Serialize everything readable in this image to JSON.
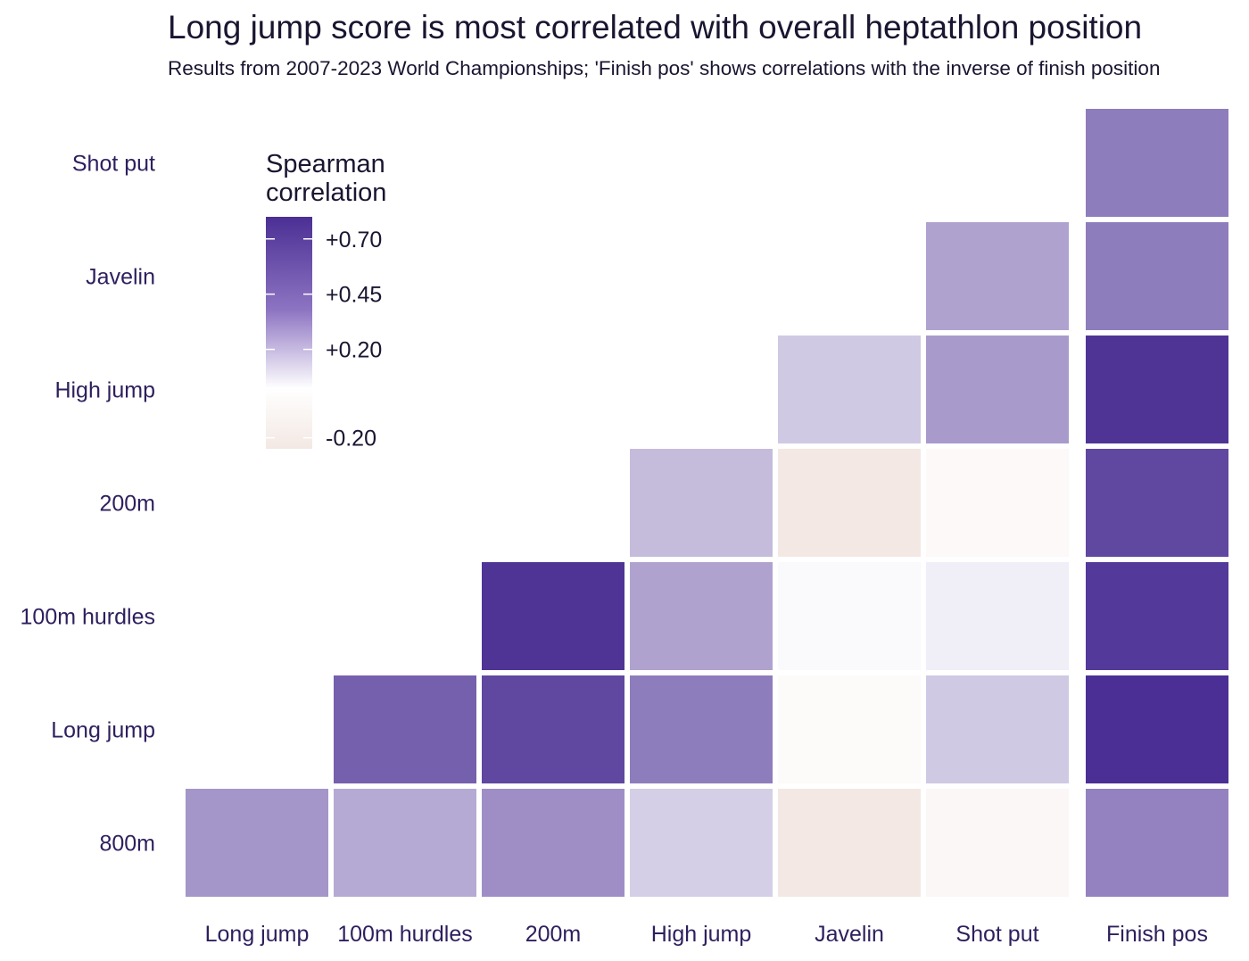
{
  "chart_data": {
    "type": "heatmap",
    "title": "Long jump score is most correlated with overall heptathlon position",
    "subtitle": "Results from 2007-2023 World Championships; 'Finish pos' shows correlations with the inverse of finish position",
    "x_labels": [
      "Long jump",
      "100m hurdles",
      "200m",
      "High jump",
      "Javelin",
      "Shot put",
      "Finish pos"
    ],
    "y_labels": [
      "Shot put",
      "Javelin",
      "High jump",
      "200m",
      "100m hurdles",
      "Long jump",
      "800m"
    ],
    "matrix": [
      [
        null,
        null,
        null,
        null,
        null,
        null,
        0.5
      ],
      [
        null,
        null,
        null,
        null,
        null,
        0.35,
        0.5
      ],
      [
        null,
        null,
        null,
        null,
        0.2,
        0.38,
        0.8
      ],
      [
        null,
        null,
        null,
        0.25,
        -0.15,
        -0.03,
        0.72
      ],
      [
        null,
        null,
        0.8,
        0.35,
        0.02,
        0.06,
        0.78
      ],
      [
        null,
        0.62,
        0.72,
        0.5,
        -0.02,
        0.2,
        0.82
      ],
      [
        0.4,
        0.32,
        0.43,
        0.18,
        -0.15,
        -0.04,
        0.48
      ]
    ],
    "legend": {
      "title_line1": "Spearman",
      "title_line2": "correlation",
      "ticks": [
        {
          "value": 0.7,
          "label": "+0.70"
        },
        {
          "value": 0.45,
          "label": "+0.45"
        },
        {
          "value": 0.2,
          "label": "+0.20"
        },
        {
          "value": -0.2,
          "label": "-0.20"
        }
      ],
      "range": [
        -0.25,
        0.8
      ],
      "placement": "top-left"
    },
    "colors": {
      "negative": "#f3e8e3",
      "zero": "#ffffff",
      "positive": "#4b2f94",
      "label_color": "#2e1f5e"
    }
  }
}
